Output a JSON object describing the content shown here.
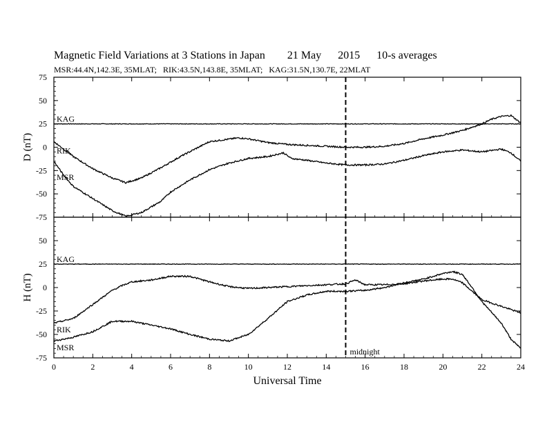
{
  "chart_data": [
    {
      "type": "line",
      "title": "Magnetic Field Variations at 3 Stations in Japan        21 May      2015      10-s averages",
      "subtitle": "MSR:44.4N,142.3E, 35MLAT;   RIK:43.5N,143.8E, 35MLAT;   KAG:31.5N,130.7E, 22MLAT",
      "xlabel": "Universal Time",
      "ylabel": "D (nT)",
      "xlim": [
        0,
        24
      ],
      "ylim": [
        -75,
        75
      ],
      "xticks": [
        "0",
        "2",
        "4",
        "6",
        "8",
        "10",
        "12",
        "14",
        "16",
        "18",
        "20",
        "22",
        "24"
      ],
      "yticks": [
        "75",
        "50",
        "25",
        "0",
        "-25",
        "-50",
        "-75"
      ],
      "annotation": {
        "text": "midnight",
        "x": 15
      },
      "series": [
        {
          "name": "KAG",
          "x": [
            0,
            24
          ],
          "values": [
            25,
            25
          ]
        },
        {
          "name": "RIK",
          "x": [
            0,
            1,
            2,
            3,
            3.7,
            4.5,
            5.5,
            6.5,
            8,
            9.5,
            10,
            11,
            12,
            13,
            14,
            15,
            16,
            17,
            18,
            19,
            20,
            21,
            22,
            22.5,
            23,
            23.5,
            24
          ],
          "values": [
            6,
            -10,
            -23,
            -33,
            -38,
            -33,
            -22,
            -10,
            6,
            10,
            9,
            5,
            3,
            2,
            1,
            0,
            0,
            1,
            4,
            9,
            13,
            18,
            25,
            30,
            33,
            34,
            26
          ]
        },
        {
          "name": "MSR",
          "x": [
            0,
            0.5,
            1,
            2,
            3,
            3.7,
            4.5,
            5.5,
            6,
            7,
            8,
            9,
            10,
            11,
            11.8,
            12.2,
            13,
            14,
            15,
            16,
            17,
            18,
            19,
            20,
            21,
            22,
            23,
            23.5,
            24
          ],
          "values": [
            -15,
            -30,
            -42,
            -55,
            -68,
            -74,
            -70,
            -58,
            -48,
            -35,
            -24,
            -17,
            -12,
            -10,
            -6,
            -12,
            -14,
            -17,
            -19,
            -19,
            -18,
            -14,
            -9,
            -5,
            -3,
            -5,
            -2,
            -6,
            -15
          ]
        }
      ]
    },
    {
      "type": "line",
      "xlabel": "Universal Time",
      "ylabel": "H (nT)",
      "xlim": [
        0,
        24
      ],
      "ylim": [
        -75,
        75
      ],
      "xticks": [
        "0",
        "2",
        "4",
        "6",
        "8",
        "10",
        "12",
        "14",
        "16",
        "18",
        "20",
        "22",
        "24"
      ],
      "yticks": [
        "75",
        "50",
        "25",
        "0",
        "-25",
        "-50",
        "-75"
      ],
      "series": [
        {
          "name": "KAG",
          "x": [
            0,
            24
          ],
          "values": [
            25,
            25
          ]
        },
        {
          "name": "RIK",
          "x": [
            0,
            1,
            2,
            3,
            3.5,
            4,
            5,
            6,
            7,
            8,
            9,
            10,
            11,
            12,
            13,
            14,
            15,
            15.5,
            16,
            17,
            18,
            19,
            20,
            20.5,
            21,
            22,
            23,
            24
          ],
          "values": [
            -38,
            -33,
            -18,
            -3,
            2,
            6,
            8,
            12,
            12,
            6,
            1,
            -1,
            0,
            1,
            2,
            3,
            4,
            8,
            3,
            3,
            4,
            7,
            9,
            9,
            5,
            -13,
            -20,
            -27
          ]
        },
        {
          "name": "MSR",
          "x": [
            0,
            1,
            2,
            3,
            4,
            5,
            6,
            7,
            8,
            9,
            10,
            11,
            12,
            13,
            14,
            15,
            16,
            17,
            18,
            19,
            20,
            20.5,
            21,
            21.5,
            22,
            23,
            23.5,
            24
          ],
          "values": [
            -57,
            -53,
            -47,
            -36,
            -36,
            -40,
            -44,
            -50,
            -55,
            -57,
            -50,
            -33,
            -15,
            -8,
            -4,
            -4,
            -3,
            0,
            5,
            9,
            15,
            17,
            14,
            0,
            -15,
            -38,
            -55,
            -65
          ]
        }
      ]
    }
  ]
}
